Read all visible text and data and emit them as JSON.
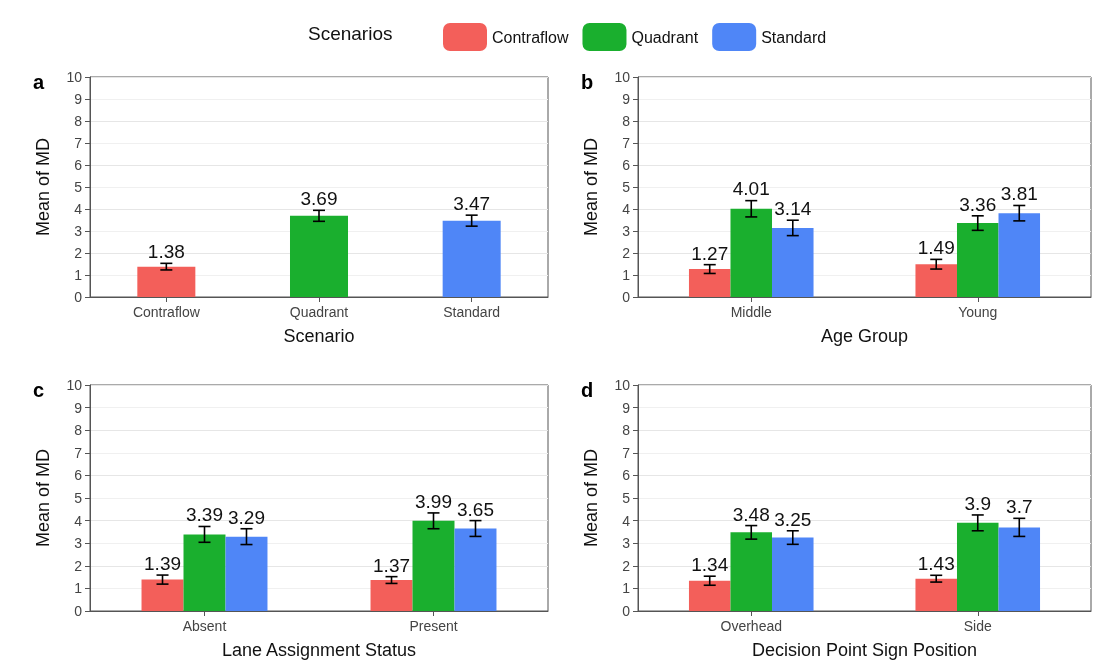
{
  "chart_data": [
    {
      "type": "bar",
      "title": "a",
      "xlabel": "Scenario",
      "ylabel": "Mean of MD",
      "legend_title": "Scenarios",
      "legend": "top",
      "stacked": true,
      "data_labels": true,
      "grid": "y",
      "categories": [
        "Contraflow",
        "Quadrant",
        "Standard"
      ],
      "ylim": [
        0,
        10
      ],
      "yticks": [
        0,
        1,
        2,
        3,
        4,
        5,
        6,
        7,
        8,
        9,
        10
      ],
      "series": [
        {
          "name": "Contraflow",
          "color": "#f35f5a",
          "values": [
            1.38,
            null,
            null
          ],
          "errors": [
            0.15,
            null,
            null
          ]
        },
        {
          "name": "Quadrant",
          "color": "#1aaf2e",
          "values": [
            null,
            3.69,
            null
          ],
          "errors": [
            null,
            0.25,
            null
          ]
        },
        {
          "name": "Standard",
          "color": "#4f86f7",
          "values": [
            null,
            null,
            3.47
          ],
          "errors": [
            null,
            null,
            0.25
          ]
        }
      ]
    },
    {
      "type": "bar",
      "title": "b",
      "xlabel": "Age Group",
      "ylabel": "Mean of MD",
      "data_labels": true,
      "grid": "y",
      "categories": [
        "Middle",
        "Young"
      ],
      "ylim": [
        0,
        10
      ],
      "yticks": [
        0,
        1,
        2,
        3,
        4,
        5,
        6,
        7,
        8,
        9,
        10
      ],
      "series": [
        {
          "color": "#f35f5a",
          "values": [
            1.27,
            1.49
          ],
          "errors": [
            0.2,
            0.22
          ]
        },
        {
          "color": "#1aaf2e",
          "values": [
            4.01,
            3.36
          ],
          "errors": [
            0.37,
            0.33
          ]
        },
        {
          "color": "#4f86f7",
          "values": [
            3.14,
            3.81
          ],
          "errors": [
            0.35,
            0.35
          ]
        }
      ]
    },
    {
      "type": "bar",
      "title": "c",
      "xlabel": "Lane Assignment Status",
      "ylabel": "Mean of MD",
      "data_labels": true,
      "grid": "y",
      "categories": [
        "Absent",
        "Present"
      ],
      "ylim": [
        0,
        10
      ],
      "yticks": [
        0,
        1,
        2,
        3,
        4,
        5,
        6,
        7,
        8,
        9,
        10
      ],
      "series": [
        {
          "color": "#f35f5a",
          "values": [
            1.39,
            1.37
          ],
          "errors": [
            0.2,
            0.15
          ]
        },
        {
          "color": "#1aaf2e",
          "values": [
            3.39,
            3.99
          ],
          "errors": [
            0.35,
            0.35
          ]
        },
        {
          "color": "#4f86f7",
          "values": [
            3.29,
            3.65
          ],
          "errors": [
            0.35,
            0.35
          ]
        }
      ]
    },
    {
      "type": "bar",
      "title": "d",
      "xlabel": "Decision Point Sign Position",
      "ylabel": "Mean of MD",
      "data_labels": true,
      "grid": "y",
      "categories": [
        "Overhead",
        "Side"
      ],
      "ylim": [
        0,
        10
      ],
      "yticks": [
        0,
        1,
        2,
        3,
        4,
        5,
        6,
        7,
        8,
        9,
        10
      ],
      "series": [
        {
          "color": "#f35f5a",
          "values": [
            1.34,
            1.43
          ],
          "errors": [
            0.2,
            0.15
          ]
        },
        {
          "color": "#1aaf2e",
          "values": [
            3.48,
            3.9
          ],
          "errors": [
            0.3,
            0.35
          ]
        },
        {
          "color": "#4f86f7",
          "values": [
            3.25,
            3.7
          ],
          "errors": [
            0.3,
            0.4
          ]
        }
      ]
    }
  ]
}
